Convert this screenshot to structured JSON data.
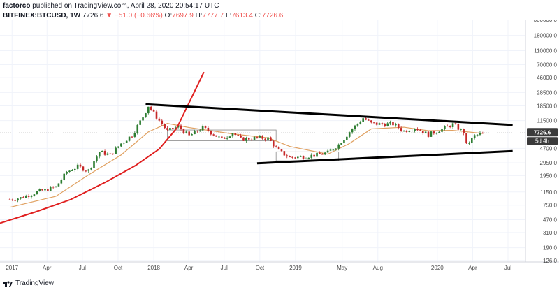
{
  "header": {
    "author": "factorco",
    "published_text": "published on TradingView.com, April 28, 2020 20:54:17 UTC",
    "symbol": "BITFINEX:BTCUSD, 1W",
    "last": "7726.6",
    "change": "▼ −51.0 (−0.66%)",
    "open_label": "O:",
    "open": "7697.9",
    "high_label": "H:",
    "high": "7777.7",
    "low_label": "L:",
    "low": "7613.4",
    "close_label": "C:",
    "close": "7726.6"
  },
  "price_tag": {
    "value": "7726.6",
    "countdown": "5d 4h"
  },
  "footer": {
    "brand": "TradingView"
  },
  "colors": {
    "up": "#26a69a",
    "down": "#ef5350",
    "candle_up": "#2e7d32",
    "candle_down": "#c62828",
    "ma": "#e0a060",
    "parabola": "#e02020",
    "trendline": "#000000",
    "price_tag_bg": "#3a3a3a"
  },
  "chart_data": {
    "type": "candlestick",
    "scale": "log",
    "y_ticks": [
      126.0,
      190.0,
      310.0,
      470.0,
      750.0,
      1150.0,
      1950.0,
      2950.0,
      4700.0,
      7726.6,
      11500.0,
      18500.0,
      28500.0,
      46000.0,
      70000.0,
      110000.0,
      180000.0,
      300000.0
    ],
    "y_tick_labels": [
      "126.0",
      "190.0",
      "310.0",
      "470.0",
      "750.0",
      "1150.0",
      "1950.0",
      "2950.0",
      "4700.0",
      "7726.6",
      "11500.0",
      "18500.0",
      "28500.0",
      "46000.0",
      "70000.0",
      "110000.0",
      "180000.0",
      "300000.0"
    ],
    "x_ticks": [
      "2017",
      "Apr",
      "Jul",
      "Oct",
      "2018",
      "Apr",
      "Jul",
      "Oct",
      "2019",
      "May",
      "Aug",
      "2020",
      "Apr",
      "Jul"
    ],
    "x_tick_dates": [
      "2017-01-01",
      "2017-04-01",
      "2017-07-01",
      "2017-10-01",
      "2018-01-01",
      "2018-04-01",
      "2018-07-01",
      "2018-10-01",
      "2019-01-01",
      "2019-05-01",
      "2019-08-01",
      "2020-01-01",
      "2020-04-01",
      "2020-07-01"
    ],
    "price_path": [
      [
        "2016-12-26",
        900
      ],
      [
        "2017-01-23",
        950
      ],
      [
        "2017-03-06",
        1150
      ],
      [
        "2017-04-24",
        1350
      ],
      [
        "2017-05-22",
        2200
      ],
      [
        "2017-06-19",
        2600
      ],
      [
        "2017-07-17",
        2300
      ],
      [
        "2017-08-14",
        4200
      ],
      [
        "2017-09-11",
        3800
      ],
      [
        "2017-10-09",
        5500
      ],
      [
        "2017-11-06",
        7200
      ],
      [
        "2017-12-04",
        13000
      ],
      [
        "2017-12-18",
        18500
      ],
      [
        "2018-01-15",
        11500
      ],
      [
        "2018-02-05",
        8200
      ],
      [
        "2018-03-05",
        9500
      ],
      [
        "2018-04-02",
        7000
      ],
      [
        "2018-05-07",
        9200
      ],
      [
        "2018-06-25",
        6300
      ],
      [
        "2018-07-23",
        7800
      ],
      [
        "2018-08-13",
        6300
      ],
      [
        "2018-09-24",
        6600
      ],
      [
        "2018-10-22",
        6500
      ],
      [
        "2018-11-19",
        4300
      ],
      [
        "2018-12-17",
        3500
      ],
      [
        "2019-01-14",
        3550
      ],
      [
        "2019-02-25",
        3800
      ],
      [
        "2019-03-25",
        4100
      ],
      [
        "2019-04-22",
        5300
      ],
      [
        "2019-05-20",
        8000
      ],
      [
        "2019-06-24",
        12500
      ],
      [
        "2019-07-15",
        10500
      ],
      [
        "2019-08-12",
        10200
      ],
      [
        "2019-09-09",
        10300
      ],
      [
        "2019-10-07",
        8200
      ],
      [
        "2019-11-04",
        9200
      ],
      [
        "2019-12-09",
        7300
      ],
      [
        "2020-01-13",
        8800
      ],
      [
        "2020-02-10",
        10200
      ],
      [
        "2020-03-09",
        7900
      ],
      [
        "2020-03-16",
        5200
      ],
      [
        "2020-04-06",
        7000
      ],
      [
        "2020-04-27",
        7726.6
      ]
    ],
    "moving_average": [
      [
        "2016-12-26",
        700
      ],
      [
        "2017-04-24",
        1000
      ],
      [
        "2017-07-17",
        2000
      ],
      [
        "2017-10-09",
        3800
      ],
      [
        "2017-12-18",
        8000
      ],
      [
        "2018-02-05",
        10500
      ],
      [
        "2018-04-02",
        9200
      ],
      [
        "2018-07-23",
        7500
      ],
      [
        "2018-10-22",
        6600
      ],
      [
        "2018-12-17",
        5000
      ],
      [
        "2019-03-25",
        3900
      ],
      [
        "2019-05-20",
        5500
      ],
      [
        "2019-07-15",
        8800
      ],
      [
        "2019-10-07",
        9300
      ],
      [
        "2019-12-09",
        8300
      ],
      [
        "2020-02-10",
        8400
      ],
      [
        "2020-04-27",
        7600
      ]
    ],
    "annotations": {
      "upper_trendline": [
        [
          "2017-12-11",
          19500
        ],
        [
          "2020-07-13",
          10000
        ]
      ],
      "lower_trendline": [
        [
          "2018-09-24",
          2900
        ],
        [
          "2020-07-13",
          4300
        ]
      ],
      "parabola": [
        [
          "2016-12-01",
          420
        ],
        [
          "2017-03-01",
          600
        ],
        [
          "2017-06-01",
          900
        ],
        [
          "2017-09-01",
          1600
        ],
        [
          "2017-11-15",
          2700
        ],
        [
          "2018-01-15",
          4600
        ],
        [
          "2018-03-01",
          9000
        ],
        [
          "2018-04-01",
          20000
        ],
        [
          "2018-05-10",
          55000
        ]
      ],
      "range_box": [
        [
          "2018-02-05",
          6000
        ],
        [
          "2018-11-12",
          8500
        ]
      ],
      "bear_box": [
        [
          "2018-11-12",
          3150
        ],
        [
          "2019-04-22",
          4200
        ]
      ]
    }
  }
}
